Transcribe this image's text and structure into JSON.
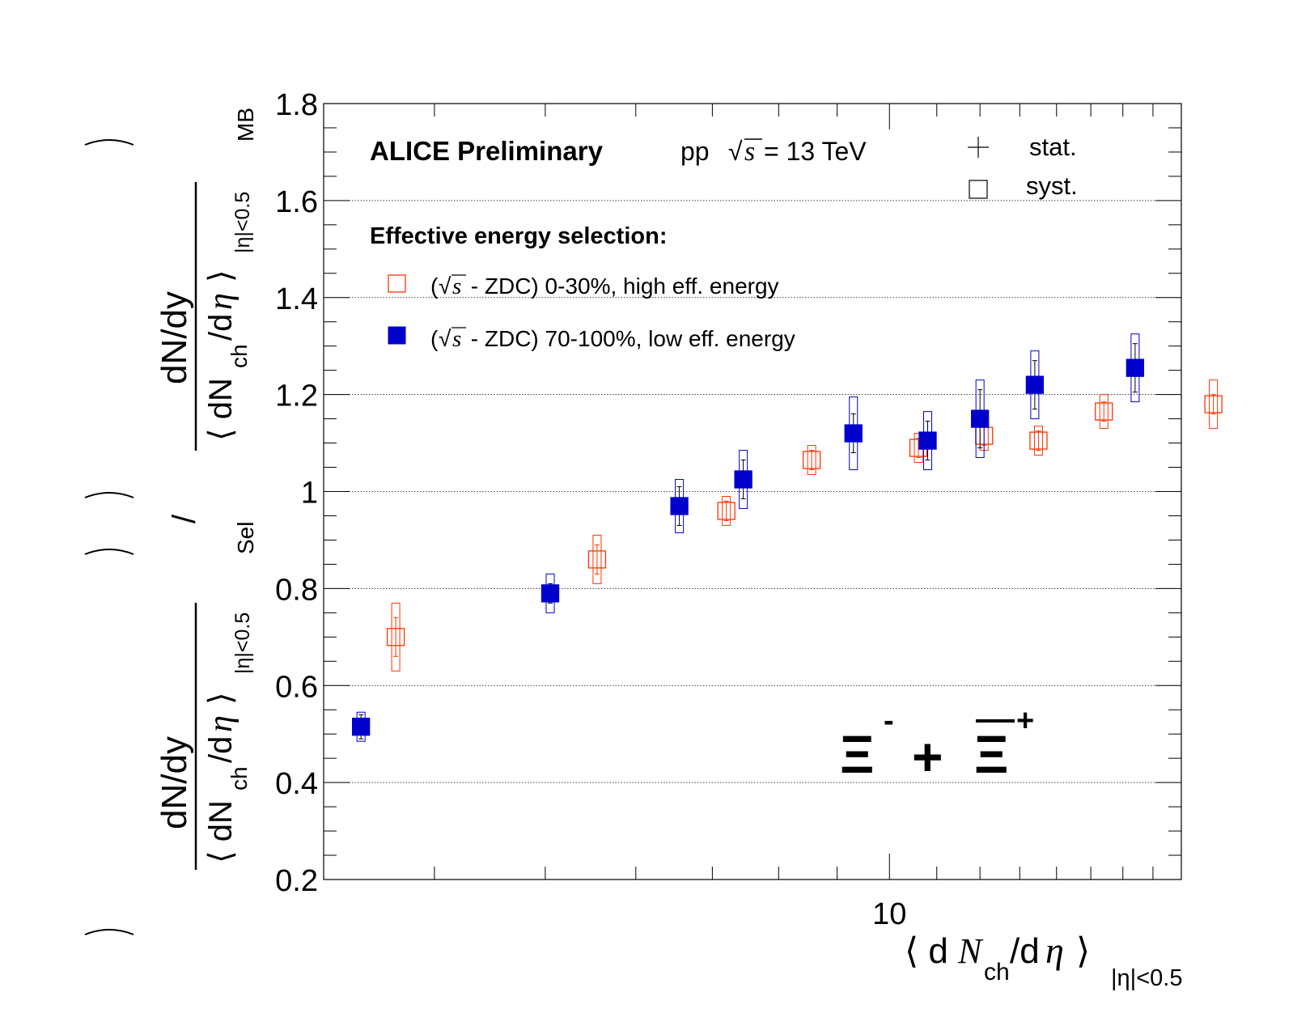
{
  "chart_data": {
    "type": "scatter",
    "title": "ALICE Preliminary",
    "system": {
      "prefix": "pp",
      "sqrt": "√",
      "s": "s",
      "suffix": "= 13 TeV"
    },
    "particle": {
      "xi": "Ξ",
      "minus": "-",
      "plus_sign": "+",
      "plus": "+"
    },
    "xlabel": {
      "open": "⟨ d",
      "N": "N",
      "ch": "ch",
      "slash": "/d",
      "eta": "η",
      "close": "⟩",
      "sub": "|η|<0.5"
    },
    "ylabel": {
      "top": {
        "numerator": "dN/dy",
        "denominator_open": "⟨ dN",
        "ch": "ch",
        "slash": "/d",
        "eta": "η",
        "close": "⟩",
        "sub": "|η|<0.5",
        "outer_sub": "MB"
      },
      "bottom": {
        "numerator": "dN/dy",
        "denominator_open": "⟨ dN",
        "ch": "ch",
        "slash": "/d",
        "eta": "η",
        "close": "⟩",
        "sub": "|η|<0.5",
        "outer_sub": "Sel"
      },
      "divider": "/"
    },
    "x_scale": "log",
    "xlim": [
      3.2,
      18
    ],
    "ylim": [
      0.2,
      1.8
    ],
    "yticks": [
      0.2,
      0.4,
      0.6,
      0.8,
      1,
      1.2,
      1.4,
      1.6,
      1.8
    ],
    "ytick_labels": [
      "0.2",
      "0.4",
      "0.6",
      "0.8",
      "1",
      "1.2",
      "1.4",
      "1.6",
      "1.8"
    ],
    "xtick_labels": [
      {
        "value": 10,
        "label": "10"
      }
    ],
    "grid": "horizontal dotted",
    "error_legend": {
      "stat": "stat.",
      "syst": "syst."
    },
    "legend_header": "Effective energy selection:",
    "series": [
      {
        "name": "(√s - ZDC) 0-30%, high eff. energy",
        "legend_label": {
          "open": "(",
          "sqrt": "√",
          "s": "s",
          "rest": " - ZDC) 0-30%, high eff. energy"
        },
        "marker": "open-square",
        "color": "#ff3300",
        "points": [
          {
            "x": 3.7,
            "y": 0.7,
            "stat": 0.04,
            "syst": 0.07
          },
          {
            "x": 5.55,
            "y": 0.86,
            "stat": 0.03,
            "syst": 0.05
          },
          {
            "x": 7.2,
            "y": 0.96,
            "stat": 0.02,
            "syst": 0.03
          },
          {
            "x": 8.55,
            "y": 1.065,
            "stat": 0.02,
            "syst": 0.03
          },
          {
            "x": 10.6,
            "y": 1.09,
            "stat": 0.02,
            "syst": 0.03
          },
          {
            "x": 12.1,
            "y": 1.115,
            "stat": 0.02,
            "syst": 0.03
          },
          {
            "x": 13.5,
            "y": 1.105,
            "stat": 0.02,
            "syst": 0.03
          },
          {
            "x": 15.4,
            "y": 1.165,
            "stat": 0.02,
            "syst": 0.035
          },
          {
            "x": 19.2,
            "y": 1.18,
            "stat": 0.02,
            "syst": 0.05
          }
        ]
      },
      {
        "name": "(√s - ZDC) 70-100%, low eff. energy",
        "legend_label": {
          "open": "(",
          "sqrt": "√",
          "s": "s",
          "rest": " - ZDC) 70-100%, low eff. energy"
        },
        "marker": "filled-square",
        "color": "#0000cc",
        "points": [
          {
            "x": 3.45,
            "y": 0.515,
            "stat": 0.025,
            "syst": 0.03
          },
          {
            "x": 5.05,
            "y": 0.79,
            "stat": 0.02,
            "syst": 0.04
          },
          {
            "x": 6.55,
            "y": 0.97,
            "stat": 0.04,
            "syst": 0.055
          },
          {
            "x": 7.45,
            "y": 1.025,
            "stat": 0.04,
            "syst": 0.06
          },
          {
            "x": 9.3,
            "y": 1.12,
            "stat": 0.04,
            "syst": 0.075
          },
          {
            "x": 10.8,
            "y": 1.105,
            "stat": 0.04,
            "syst": 0.06
          },
          {
            "x": 12.0,
            "y": 1.15,
            "stat": 0.06,
            "syst": 0.08
          },
          {
            "x": 13.4,
            "y": 1.22,
            "stat": 0.05,
            "syst": 0.07
          },
          {
            "x": 16.4,
            "y": 1.255,
            "stat": 0.05,
            "syst": 0.07
          }
        ]
      }
    ]
  }
}
